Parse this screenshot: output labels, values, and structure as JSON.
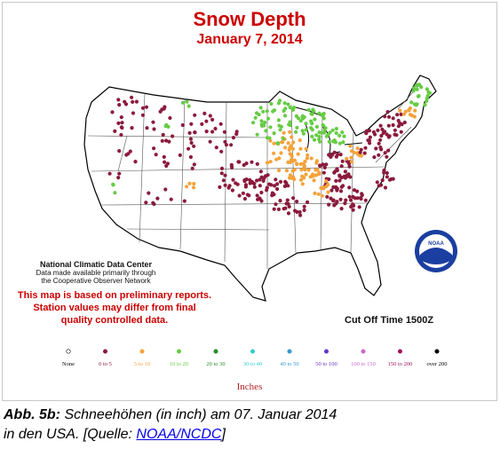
{
  "map": {
    "title": "Snow Depth",
    "date": "January 7, 2014",
    "source_lines": [
      "National Climatic Data Center",
      "Data made available primarily through",
      "the Cooperative Observer Network"
    ],
    "disclaimer_lines": [
      "This map is based on preliminary reports.",
      "Station values may differ from final",
      "quality controlled data."
    ],
    "cutoff": "Cut Off Time 1500Z",
    "logo_text": "NOAA",
    "colors": {
      "title": "#cc0000",
      "disclaimer": "#cc0000",
      "land": "#ffffff",
      "border": "#333333",
      "coast": "#000000"
    }
  },
  "legend": {
    "units": "Inches",
    "classes": [
      {
        "label": "None",
        "color": "#ffffff",
        "label_color": "#000000"
      },
      {
        "label": "0 to 5",
        "color": "#8b1a3c",
        "label_color": "#8b1a3c"
      },
      {
        "label": "5 to 10",
        "color": "#f4a23a",
        "label_color": "#f4a23a"
      },
      {
        "label": "10 to 20",
        "color": "#66cc44",
        "label_color": "#66cc44"
      },
      {
        "label": "20 to 30",
        "color": "#228b22",
        "label_color": "#228b22"
      },
      {
        "label": "30 to 40",
        "color": "#33cccc",
        "label_color": "#33cccc"
      },
      {
        "label": "40 to 50",
        "color": "#3399cc",
        "label_color": "#3399cc"
      },
      {
        "label": "50 to 100",
        "color": "#6633cc",
        "label_color": "#6633cc"
      },
      {
        "label": "100 to 150",
        "color": "#cc66cc",
        "label_color": "#cc66cc"
      },
      {
        "label": "150 to 200",
        "color": "#a0125a",
        "label_color": "#a0125a"
      },
      {
        "label": "over 200",
        "color": "#000000",
        "label_color": "#000000"
      }
    ]
  },
  "caption": {
    "prefix": "Abb. 5b:",
    "text": " Schneehöhen (in inch) am 07. Januar 2014",
    "line2": "in den USA. [Quelle: ",
    "link": "NOAA/NCDC",
    "suffix": "]"
  }
}
